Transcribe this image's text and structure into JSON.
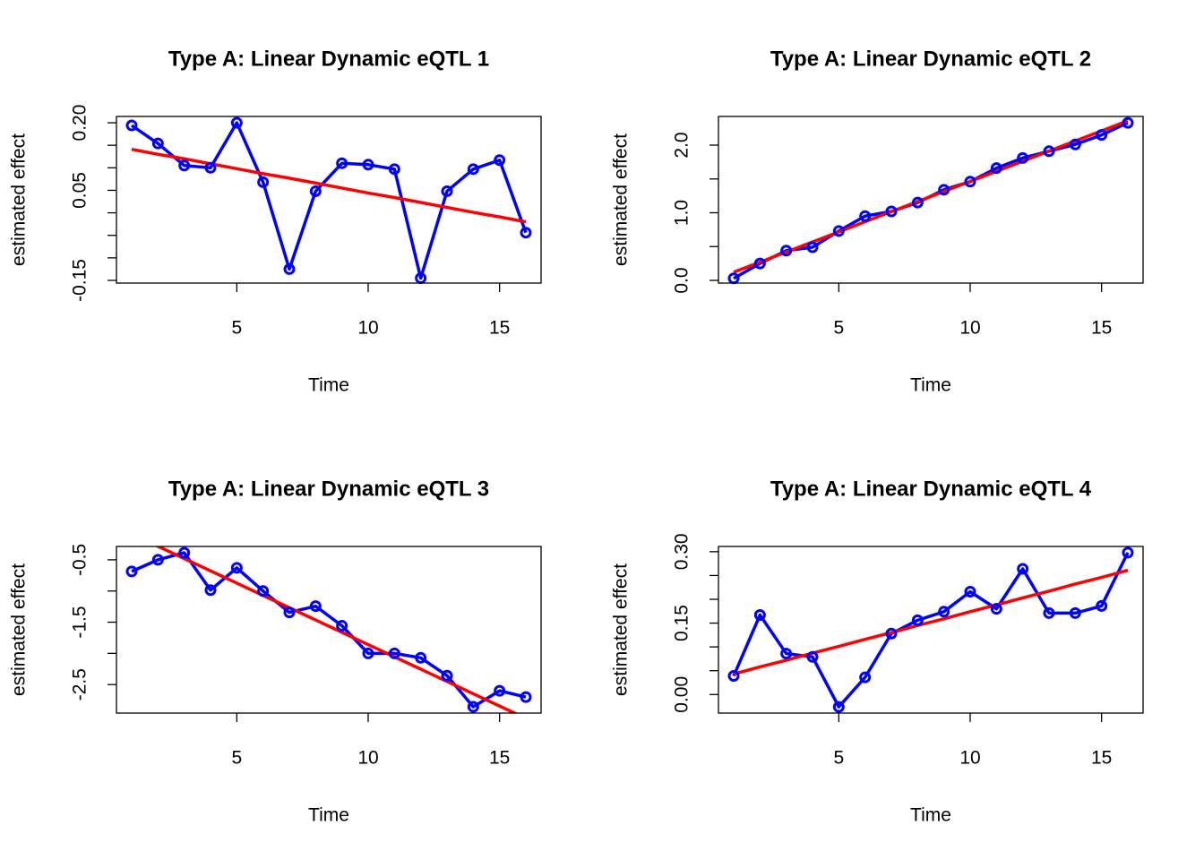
{
  "chart_data": [
    {
      "type": "line",
      "title": "Type A: Linear Dynamic eQTL 1",
      "xlabel": "Time",
      "ylabel": "estimated effect",
      "x": [
        1,
        2,
        3,
        4,
        5,
        6,
        7,
        8,
        9,
        10,
        11,
        12,
        13,
        14,
        15,
        16
      ],
      "series": [
        {
          "color": "#0000ff",
          "marker": "circle",
          "values": [
            0.194,
            0.154,
            0.105,
            0.1,
            0.2,
            0.068,
            -0.125,
            0.048,
            0.11,
            0.107,
            0.097,
            -0.145,
            0.048,
            0.097,
            0.117,
            -0.044
          ]
        },
        {
          "color": "#ff0000",
          "values": [
            0.141,
            0.13,
            0.12,
            0.109,
            0.098,
            0.087,
            0.077,
            0.066,
            0.055,
            0.044,
            0.034,
            0.023,
            0.012,
            0.001,
            -0.009,
            -0.02
          ]
        }
      ],
      "xlim": [
        0.42,
        16.58
      ],
      "xticks": [
        5,
        10,
        15
      ],
      "ylim": [
        -0.156,
        0.214
      ],
      "yticks": [
        -0.15,
        {
          "value": -0.1
        },
        {
          "value": -0.05
        },
        {
          "value": 0
        },
        0.05,
        {
          "value": 0.1
        },
        {
          "value": 0.15
        },
        {
          "value": 0.2,
          "label": "0.20"
        }
      ]
    },
    {
      "type": "line",
      "title": "Type A: Linear Dynamic eQTL 2",
      "xlabel": "Time",
      "ylabel": "estimated effect",
      "x": [
        1,
        2,
        3,
        4,
        5,
        6,
        7,
        8,
        9,
        10,
        11,
        12,
        13,
        14,
        15,
        16
      ],
      "series": [
        {
          "color": "#0000ff",
          "marker": "circle",
          "values": [
            0.03,
            0.25,
            0.44,
            0.49,
            0.73,
            0.95,
            1.02,
            1.15,
            1.34,
            1.46,
            1.66,
            1.81,
            1.91,
            2.01,
            2.15,
            2.33
          ]
        },
        {
          "color": "#ff0000",
          "values": [
            0.12,
            0.269,
            0.419,
            0.568,
            0.717,
            0.867,
            1.016,
            1.165,
            1.314,
            1.464,
            1.613,
            1.762,
            1.912,
            2.061,
            2.21,
            2.36
          ]
        }
      ],
      "xlim": [
        0.42,
        16.58
      ],
      "xticks": [
        5,
        10,
        15
      ],
      "ylim": [
        -0.04,
        2.424
      ],
      "yticks": [
        {
          "value": 0,
          "label": "0.0"
        },
        {
          "value": 0.5
        },
        {
          "value": 1,
          "label": "1.0"
        },
        {
          "value": 1.5
        },
        {
          "value": 2,
          "label": "2.0"
        }
      ]
    },
    {
      "type": "line",
      "title": "Type A: Linear Dynamic eQTL 3",
      "xlabel": "Time",
      "ylabel": "estimated effect",
      "x": [
        1,
        2,
        3,
        4,
        5,
        6,
        7,
        8,
        9,
        10,
        11,
        12,
        13,
        14,
        15,
        16
      ],
      "series": [
        {
          "color": "#0000ff",
          "marker": "circle",
          "values": [
            -0.686,
            -0.5,
            -0.386,
            -0.986,
            -0.629,
            -1.0,
            -1.343,
            -1.243,
            -1.557,
            -2.0,
            -2.0,
            -2.071,
            -2.357,
            -2.857,
            -2.6,
            -2.7
          ]
        },
        {
          "color": "#ff0000",
          "values": [
            -0.086,
            -0.283,
            -0.48,
            -0.677,
            -0.874,
            -1.071,
            -1.268,
            -1.465,
            -1.662,
            -1.859,
            -2.056,
            -2.253,
            -2.45,
            -2.647,
            -2.844,
            -3.041
          ]
        }
      ],
      "xlim": [
        0.42,
        16.58
      ],
      "xticks": [
        5,
        10,
        15
      ],
      "ylim": [
        -2.957,
        -0.286
      ],
      "yticks": [
        -2.5,
        {
          "value": -2
        },
        -1.5,
        {
          "value": -1
        },
        -0.5
      ]
    },
    {
      "type": "line",
      "title": "Type A: Linear Dynamic eQTL 4",
      "xlabel": "Time",
      "ylabel": "estimated effect",
      "x": [
        1,
        2,
        3,
        4,
        5,
        6,
        7,
        8,
        9,
        10,
        11,
        12,
        13,
        14,
        15,
        16
      ],
      "series": [
        {
          "color": "#0000ff",
          "marker": "circle",
          "values": [
            0.039,
            0.167,
            0.086,
            0.079,
            -0.026,
            0.036,
            0.128,
            0.156,
            0.174,
            0.216,
            0.18,
            0.264,
            0.171,
            0.171,
            0.186,
            0.298
          ]
        },
        {
          "color": "#ff0000",
          "values": [
            0.043,
            0.058,
            0.072,
            0.087,
            0.101,
            0.116,
            0.13,
            0.145,
            0.159,
            0.174,
            0.188,
            0.203,
            0.217,
            0.232,
            0.246,
            0.261
          ]
        }
      ],
      "xlim": [
        0.42,
        16.58
      ],
      "xticks": [
        5,
        10,
        15
      ],
      "ylim": [
        -0.039,
        0.311
      ],
      "yticks": [
        {
          "value": 0,
          "label": "0.00"
        },
        {
          "value": 0.05
        },
        {
          "value": 0.1
        },
        0.15,
        {
          "value": 0.2
        },
        {
          "value": 0.25
        },
        {
          "value": 0.3,
          "label": "0.30"
        }
      ]
    }
  ]
}
